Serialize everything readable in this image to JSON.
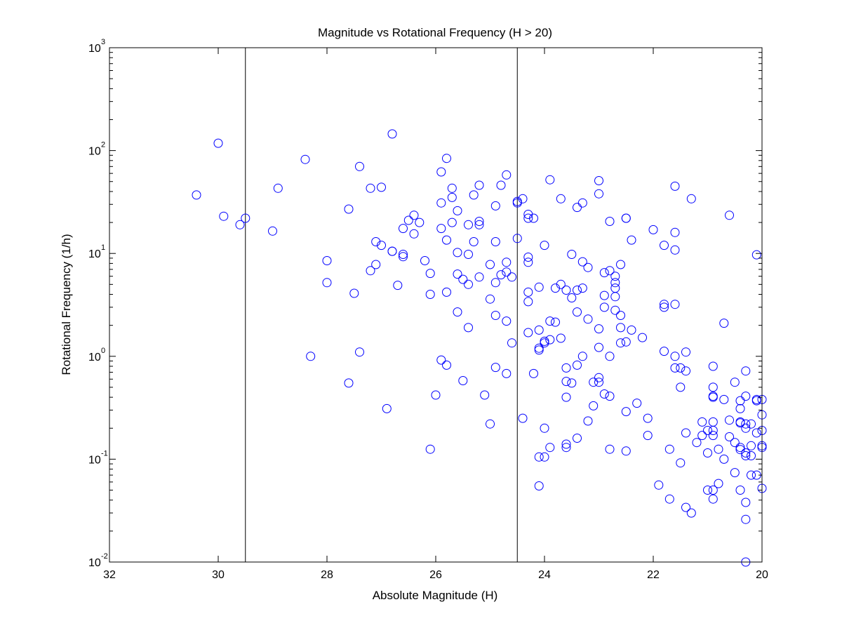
{
  "chart_data": {
    "type": "scatter",
    "title": "Magnitude vs Rotational Frequency (H > 20)",
    "xlabel": "Absolute Magnitude (H)",
    "ylabel": "Rotational Frequency (1/h)",
    "xlim": [
      32,
      20
    ],
    "x_reversed": true,
    "ylim": [
      0.01,
      1000
    ],
    "y_scale": "log",
    "grid": false,
    "marker": "open-circle",
    "x_ticks": [
      "32",
      "30",
      "28",
      "26",
      "24",
      "22",
      "20"
    ],
    "y_ticks": [
      {
        "base": "10",
        "exp": "-2"
      },
      {
        "base": "10",
        "exp": "-1"
      },
      {
        "base": "10",
        "exp": "0"
      },
      {
        "base": "10",
        "exp": "1"
      },
      {
        "base": "10",
        "exp": "2"
      },
      {
        "base": "10",
        "exp": "3"
      }
    ],
    "vertical_lines": [
      29.5,
      24.5
    ],
    "colors": {
      "marker": "#0000ff",
      "axes": "#000000",
      "background": "#ffffff"
    },
    "series": [
      {
        "points": [
          [
            30.4,
            37
          ],
          [
            30.0,
            118
          ],
          [
            29.9,
            23
          ],
          [
            29.6,
            19
          ],
          [
            29.5,
            22
          ],
          [
            29.0,
            16.5
          ],
          [
            28.9,
            43
          ],
          [
            28.4,
            82
          ],
          [
            28.3,
            1.0
          ],
          [
            28.0,
            8.5
          ],
          [
            28.0,
            5.2
          ],
          [
            27.6,
            27
          ],
          [
            27.6,
            0.55
          ],
          [
            27.5,
            4.1
          ],
          [
            27.4,
            70
          ],
          [
            27.4,
            1.1
          ],
          [
            27.2,
            43
          ],
          [
            27.2,
            6.8
          ],
          [
            27.1,
            13
          ],
          [
            27.1,
            7.8
          ],
          [
            27.0,
            44
          ],
          [
            27.0,
            12
          ],
          [
            26.9,
            0.31
          ],
          [
            26.8,
            145
          ],
          [
            26.8,
            10.5
          ],
          [
            26.8,
            10.5
          ],
          [
            26.7,
            4.9
          ],
          [
            26.6,
            17.5
          ],
          [
            26.6,
            9.8
          ],
          [
            26.6,
            9.3
          ],
          [
            26.5,
            21
          ],
          [
            26.4,
            23.5
          ],
          [
            26.4,
            15.5
          ],
          [
            26.3,
            20
          ],
          [
            26.2,
            8.5
          ],
          [
            26.1,
            6.4
          ],
          [
            26.1,
            4.0
          ],
          [
            26.1,
            0.125
          ],
          [
            26.0,
            0.42
          ],
          [
            25.9,
            62
          ],
          [
            25.9,
            31
          ],
          [
            25.9,
            17.5
          ],
          [
            25.9,
            0.92
          ],
          [
            25.8,
            84
          ],
          [
            25.8,
            13.5
          ],
          [
            25.8,
            4.2
          ],
          [
            25.8,
            0.82
          ],
          [
            25.7,
            43
          ],
          [
            25.7,
            35
          ],
          [
            25.7,
            20
          ],
          [
            25.6,
            26
          ],
          [
            25.6,
            10.2
          ],
          [
            25.6,
            6.3
          ],
          [
            25.6,
            2.7
          ],
          [
            25.5,
            5.6
          ],
          [
            25.5,
            0.58
          ],
          [
            25.4,
            19
          ],
          [
            25.4,
            9.8
          ],
          [
            25.4,
            5.0
          ],
          [
            25.4,
            1.9
          ],
          [
            25.3,
            37
          ],
          [
            25.3,
            13
          ],
          [
            25.2,
            46
          ],
          [
            25.2,
            20.5
          ],
          [
            25.2,
            19
          ],
          [
            25.2,
            5.9
          ],
          [
            25.1,
            0.42
          ],
          [
            25.0,
            7.8
          ],
          [
            25.0,
            3.6
          ],
          [
            25.0,
            0.22
          ],
          [
            24.9,
            29
          ],
          [
            24.9,
            13
          ],
          [
            24.9,
            5.2
          ],
          [
            24.9,
            2.5
          ],
          [
            24.9,
            0.78
          ],
          [
            24.8,
            46
          ],
          [
            24.8,
            6.2
          ],
          [
            24.7,
            58
          ],
          [
            24.7,
            8.2
          ],
          [
            24.7,
            6.6
          ],
          [
            24.7,
            2.2
          ],
          [
            24.7,
            0.68
          ],
          [
            24.6,
            5.9
          ],
          [
            24.6,
            1.35
          ],
          [
            24.5,
            32
          ],
          [
            24.5,
            31
          ],
          [
            24.5,
            14
          ],
          [
            24.4,
            34
          ],
          [
            24.4,
            0.25
          ],
          [
            24.3,
            24
          ],
          [
            24.3,
            22
          ],
          [
            24.3,
            9.2
          ],
          [
            24.3,
            8.2
          ],
          [
            24.3,
            4.2
          ],
          [
            24.3,
            3.4
          ],
          [
            24.3,
            1.7
          ],
          [
            24.2,
            22
          ],
          [
            24.2,
            0.68
          ],
          [
            24.1,
            4.7
          ],
          [
            24.1,
            1.8
          ],
          [
            24.1,
            1.2
          ],
          [
            24.1,
            1.15
          ],
          [
            24.1,
            0.105
          ],
          [
            24.1,
            0.055
          ],
          [
            24.0,
            12
          ],
          [
            24.0,
            1.4
          ],
          [
            24.0,
            1.35
          ],
          [
            24.0,
            0.2
          ],
          [
            24.0,
            0.105
          ],
          [
            23.9,
            52
          ],
          [
            23.9,
            2.2
          ],
          [
            23.9,
            1.45
          ],
          [
            23.9,
            0.13
          ],
          [
            23.8,
            4.6
          ],
          [
            23.8,
            2.15
          ],
          [
            23.7,
            34
          ],
          [
            23.7,
            5.0
          ],
          [
            23.7,
            1.5
          ],
          [
            23.6,
            4.4
          ],
          [
            23.6,
            0.77
          ],
          [
            23.6,
            0.57
          ],
          [
            23.6,
            0.4
          ],
          [
            23.6,
            0.14
          ],
          [
            23.6,
            0.13
          ],
          [
            23.5,
            9.8
          ],
          [
            23.5,
            3.7
          ],
          [
            23.5,
            0.55
          ],
          [
            23.4,
            28
          ],
          [
            23.4,
            4.4
          ],
          [
            23.4,
            2.7
          ],
          [
            23.4,
            0.82
          ],
          [
            23.4,
            0.16
          ],
          [
            23.3,
            31
          ],
          [
            23.3,
            8.3
          ],
          [
            23.3,
            4.6
          ],
          [
            23.3,
            1.0
          ],
          [
            23.2,
            7.3
          ],
          [
            23.2,
            2.3
          ],
          [
            23.2,
            0.235
          ],
          [
            23.1,
            0.56
          ],
          [
            23.1,
            0.33
          ],
          [
            23.0,
            51
          ],
          [
            23.0,
            38
          ],
          [
            23.0,
            1.85
          ],
          [
            23.0,
            1.22
          ],
          [
            23.0,
            0.62
          ],
          [
            23.0,
            0.56
          ],
          [
            22.9,
            6.5
          ],
          [
            22.9,
            3.9
          ],
          [
            22.9,
            3.0
          ],
          [
            22.9,
            0.43
          ],
          [
            22.8,
            20.5
          ],
          [
            22.8,
            6.8
          ],
          [
            22.8,
            1.0
          ],
          [
            22.8,
            0.41
          ],
          [
            22.8,
            0.125
          ],
          [
            22.7,
            6.0
          ],
          [
            22.7,
            5.2
          ],
          [
            22.7,
            4.6
          ],
          [
            22.7,
            3.8
          ],
          [
            22.7,
            2.8
          ],
          [
            22.6,
            7.8
          ],
          [
            22.6,
            2.5
          ],
          [
            22.6,
            1.9
          ],
          [
            22.6,
            1.35
          ],
          [
            22.5,
            22
          ],
          [
            22.5,
            22
          ],
          [
            22.5,
            1.38
          ],
          [
            22.5,
            0.29
          ],
          [
            22.5,
            0.12
          ],
          [
            22.4,
            13.5
          ],
          [
            22.4,
            1.8
          ],
          [
            22.3,
            0.35
          ],
          [
            22.2,
            1.52
          ],
          [
            22.1,
            0.25
          ],
          [
            22.1,
            0.17
          ],
          [
            22.0,
            17
          ],
          [
            21.9,
            0.056
          ],
          [
            21.8,
            12
          ],
          [
            21.8,
            3.2
          ],
          [
            21.8,
            3.0
          ],
          [
            21.8,
            1.12
          ],
          [
            21.7,
            0.125
          ],
          [
            21.7,
            0.041
          ],
          [
            21.6,
            45
          ],
          [
            21.6,
            16
          ],
          [
            21.6,
            10.8
          ],
          [
            21.6,
            3.2
          ],
          [
            21.6,
            1.0
          ],
          [
            21.6,
            0.77
          ],
          [
            21.5,
            0.77
          ],
          [
            21.5,
            0.5
          ],
          [
            21.5,
            0.092
          ],
          [
            21.4,
            1.1
          ],
          [
            21.4,
            0.72
          ],
          [
            21.4,
            0.18
          ],
          [
            21.4,
            0.034
          ],
          [
            21.3,
            34
          ],
          [
            21.3,
            0.03
          ],
          [
            21.2,
            0.145
          ],
          [
            21.1,
            0.23
          ],
          [
            21.1,
            0.17
          ],
          [
            21.0,
            0.19
          ],
          [
            21.0,
            0.115
          ],
          [
            21.0,
            0.05
          ],
          [
            20.9,
            0.8
          ],
          [
            20.9,
            0.5
          ],
          [
            20.9,
            0.41
          ],
          [
            20.9,
            0.4
          ],
          [
            20.9,
            0.23
          ],
          [
            20.9,
            0.19
          ],
          [
            20.9,
            0.17
          ],
          [
            20.9,
            0.05
          ],
          [
            20.9,
            0.041
          ],
          [
            20.8,
            0.125
          ],
          [
            20.8,
            0.058
          ],
          [
            20.7,
            2.1
          ],
          [
            20.7,
            0.38
          ],
          [
            20.7,
            0.1
          ],
          [
            20.6,
            23.5
          ],
          [
            20.6,
            0.24
          ],
          [
            20.6,
            0.165
          ],
          [
            20.5,
            0.56
          ],
          [
            20.5,
            0.145
          ],
          [
            20.5,
            0.074
          ],
          [
            20.4,
            0.37
          ],
          [
            20.4,
            0.31
          ],
          [
            20.4,
            0.23
          ],
          [
            20.4,
            0.225
          ],
          [
            20.4,
            0.13
          ],
          [
            20.4,
            0.124
          ],
          [
            20.4,
            0.05
          ],
          [
            20.3,
            0.72
          ],
          [
            20.3,
            0.41
          ],
          [
            20.3,
            0.22
          ],
          [
            20.3,
            0.2
          ],
          [
            20.3,
            0.115
          ],
          [
            20.3,
            0.108
          ],
          [
            20.3,
            0.038
          ],
          [
            20.3,
            0.026
          ],
          [
            20.3,
            0.01
          ],
          [
            20.2,
            0.22
          ],
          [
            20.2,
            0.135
          ],
          [
            20.2,
            0.108
          ],
          [
            20.2,
            0.07
          ],
          [
            20.1,
            9.7
          ],
          [
            20.1,
            0.38
          ],
          [
            20.1,
            0.37
          ],
          [
            20.1,
            0.18
          ],
          [
            20.1,
            0.07
          ],
          [
            20.0,
            0.38
          ],
          [
            20.0,
            0.27
          ],
          [
            20.0,
            0.19
          ],
          [
            20.0,
            0.135
          ],
          [
            20.0,
            0.13
          ],
          [
            20.0,
            0.052
          ]
        ]
      }
    ]
  }
}
